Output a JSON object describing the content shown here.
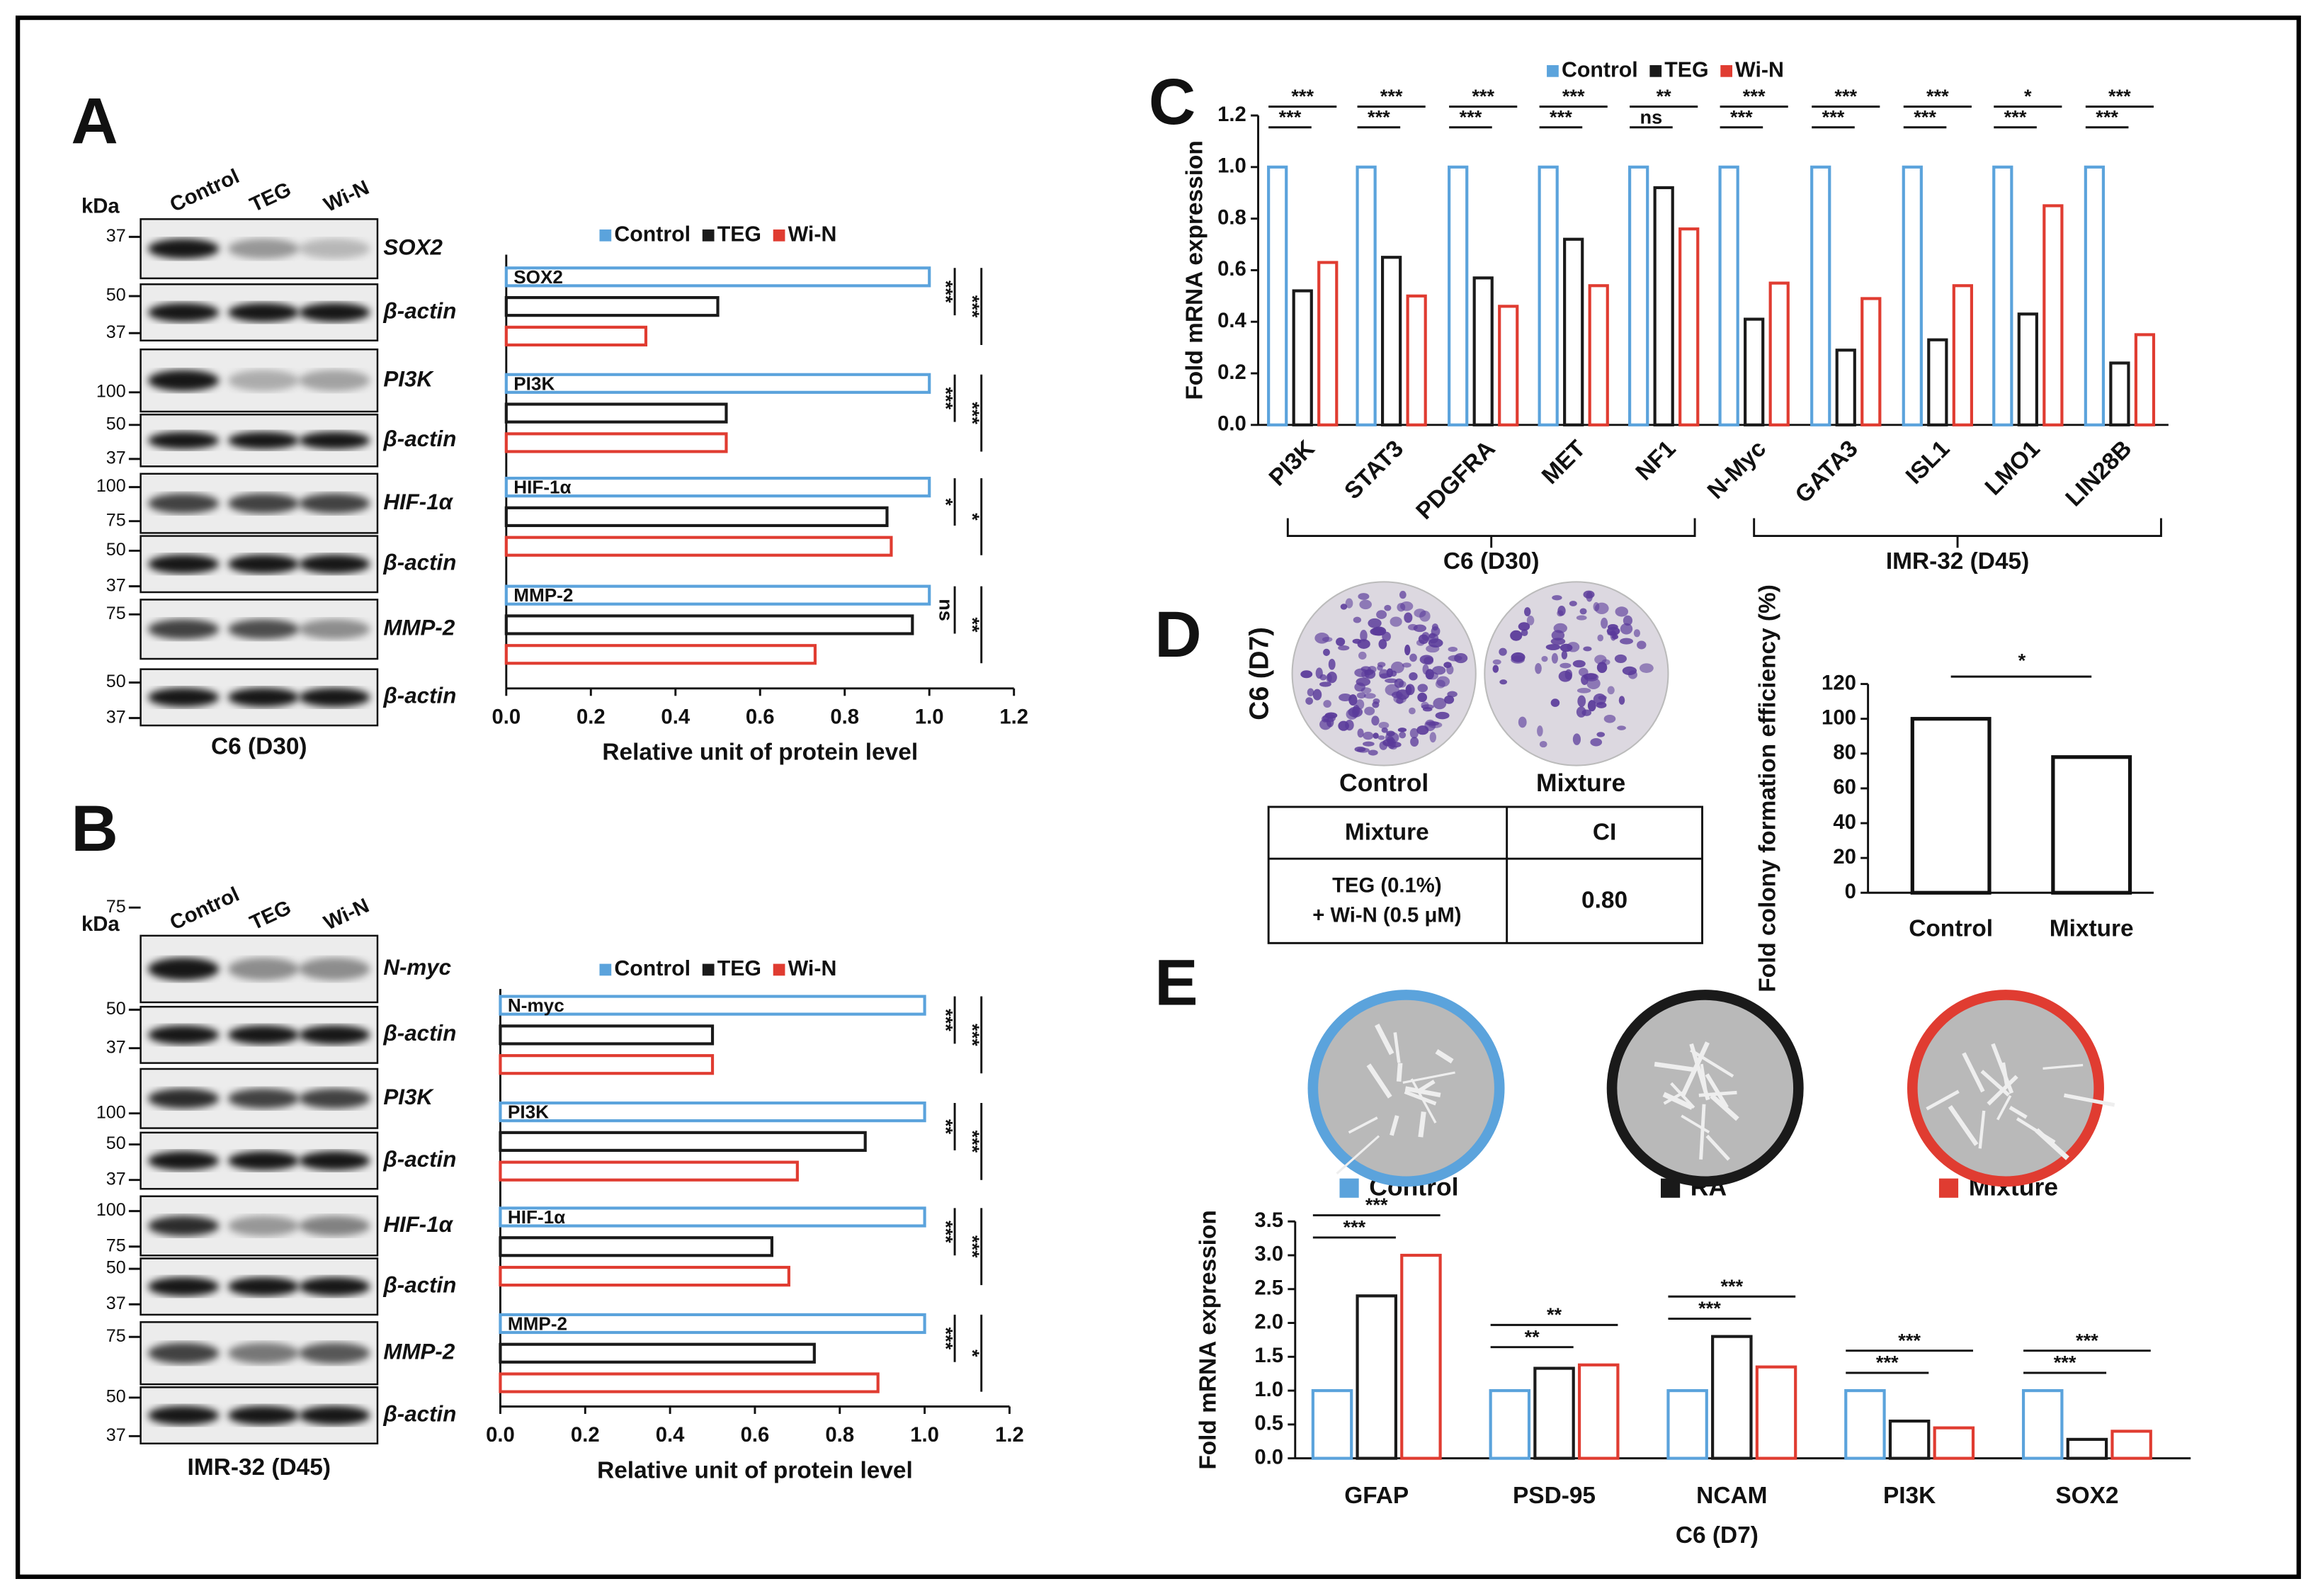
{
  "panel_letters": [
    "A",
    "B",
    "C",
    "D",
    "E"
  ],
  "blots": [
    {
      "unit": "kDa",
      "lanes": [
        "Control",
        "TEG",
        "Wi-N"
      ],
      "rows": [
        "SOX2",
        "β-actin",
        "PI3K",
        "β-actin",
        "HIF-1α",
        "β-actin",
        "MMP-2",
        "β-actin"
      ],
      "markers": [
        "37",
        "50",
        "37",
        "100",
        "50",
        "37",
        "100",
        "75",
        "50",
        "37",
        "75",
        "50",
        "37"
      ],
      "caption": "C6 (D30)"
    },
    {
      "unit": "kDa",
      "lanes": [
        "Control",
        "TEG",
        "Wi-N"
      ],
      "rows": [
        "N-myc",
        "β-actin",
        "PI3K",
        "β-actin",
        "HIF-1α",
        "β-actin",
        "MMP-2",
        "β-actin"
      ],
      "markers": [
        "75",
        "50",
        "37",
        "100",
        "50",
        "37",
        "100",
        "75",
        "50",
        "37",
        "75",
        "50",
        "37"
      ],
      "caption": "IMR-32 (D45)"
    }
  ],
  "colony_images": {
    "title": "C6 (D7)",
    "labels": [
      "Control",
      "Mixture"
    ]
  },
  "table": {
    "header": [
      "Mixture",
      "CI"
    ],
    "rows": [
      [
        [
          "TEG (0.1%)",
          "+ Wi-N (0.5 μM)"
        ],
        "0.80"
      ]
    ]
  },
  "chart_data": [
    {
      "type": "bar",
      "orientation": "horizontal",
      "categories": [
        "SOX2",
        "PI3K",
        "HIF-1α",
        "MMP-2"
      ],
      "series": [
        {
          "name": "Control",
          "color": "#5ba3dc",
          "values": [
            1.0,
            1.0,
            1.0,
            1.0
          ]
        },
        {
          "name": "TEG",
          "color": "#1a1a1a",
          "values": [
            0.5,
            0.52,
            0.9,
            0.96
          ]
        },
        {
          "name": "Wi-N",
          "color": "#e03c31",
          "values": [
            0.33,
            0.52,
            0.91,
            0.73
          ]
        }
      ],
      "xlim": [
        0,
        1.2
      ],
      "xticks": [
        {
          "value": 0,
          "label": "0.0"
        },
        0.2,
        0.4,
        0.6,
        0.8,
        {
          "value": 1,
          "label": "1.0"
        },
        1.2
      ],
      "xlabel": "Relative unit of protein level",
      "significance": [
        [
          "***",
          "***"
        ],
        [
          "***",
          "***"
        ],
        [
          "*",
          "*"
        ],
        [
          "ns",
          "**"
        ]
      ]
    },
    {
      "type": "bar",
      "orientation": "horizontal",
      "categories": [
        "N-myc",
        "PI3K",
        "HIF-1α",
        "MMP-2"
      ],
      "series": [
        {
          "name": "Control",
          "color": "#5ba3dc",
          "values": [
            1.0,
            1.0,
            1.0,
            1.0
          ]
        },
        {
          "name": "TEG",
          "color": "#1a1a1a",
          "values": [
            0.5,
            0.86,
            0.64,
            0.74
          ]
        },
        {
          "name": "Wi-N",
          "color": "#e03c31",
          "values": [
            0.5,
            0.7,
            0.68,
            0.89
          ]
        }
      ],
      "xlim": [
        0,
        1.2
      ],
      "xticks": [
        {
          "value": 0,
          "label": "0.0"
        },
        0.2,
        0.4,
        0.6,
        0.8,
        {
          "value": 1,
          "label": "1.0"
        },
        1.2
      ],
      "xlabel": "Relative unit of protein level",
      "significance": [
        [
          "***",
          "***"
        ],
        [
          "**",
          "***"
        ],
        [
          "***",
          "***"
        ],
        [
          "***",
          "*"
        ]
      ]
    },
    {
      "type": "bar",
      "categories": [
        "PI3K",
        "STAT3",
        "PDGFRA",
        "MET",
        "NF1",
        "N-Myc",
        "GATA3",
        "ISL1",
        "LMO1",
        "LIN28B"
      ],
      "series": [
        {
          "name": "Control",
          "color": "#5ba3dc",
          "values": [
            1,
            1,
            1,
            1,
            1,
            1,
            1,
            1,
            1,
            1
          ]
        },
        {
          "name": "TEG",
          "color": "#1a1a1a",
          "values": [
            0.52,
            0.65,
            0.57,
            0.72,
            0.92,
            0.41,
            0.29,
            0.33,
            0.43,
            0.24
          ]
        },
        {
          "name": "Wi-N",
          "color": "#e03c31",
          "values": [
            0.63,
            0.5,
            0.46,
            0.54,
            0.76,
            0.55,
            0.49,
            0.54,
            0.85,
            0.35
          ]
        }
      ],
      "ylim": [
        0,
        1.2
      ],
      "yticks": [
        {
          "value": 0,
          "label": "0.0"
        },
        0.2,
        0.4,
        0.6,
        0.8,
        {
          "value": 1,
          "label": "1.0"
        },
        1.2
      ],
      "ylabel": "Fold mRNA expression",
      "group_labels": [
        "C6 (D30)",
        "IMR-32 (D45)"
      ],
      "significance": [
        [
          "***",
          "***"
        ],
        [
          "***",
          "***"
        ],
        [
          "***",
          "***"
        ],
        [
          "***",
          "***"
        ],
        [
          "ns",
          "**"
        ],
        [
          "***",
          "***"
        ],
        [
          "***",
          "***"
        ],
        [
          "***",
          "***"
        ],
        [
          "***",
          "*"
        ],
        [
          "***",
          "***"
        ]
      ]
    },
    {
      "type": "bar",
      "categories": [
        "Control",
        "Mixture"
      ],
      "values": [
        100,
        78
      ],
      "color": "#111111",
      "ylim": [
        0,
        120
      ],
      "yticks": [
        0,
        20,
        40,
        60,
        80,
        100,
        120
      ],
      "ylabel": "Fold colony formation efficiency (%)",
      "significance": "*"
    },
    {
      "type": "bar",
      "categories": [
        "GFAP",
        "PSD-95",
        "NCAM",
        "PI3K",
        "SOX2"
      ],
      "series": [
        {
          "name": "Control",
          "color": "#5ba3dc",
          "values": [
            1,
            1,
            1,
            1,
            1
          ]
        },
        {
          "name": "RA",
          "color": "#1a1a1a",
          "values": [
            2.4,
            1.33,
            1.8,
            0.55,
            0.28
          ]
        },
        {
          "name": "Mixture",
          "color": "#e03c31",
          "values": [
            3.0,
            1.38,
            1.35,
            0.45,
            0.4
          ]
        }
      ],
      "ylim": [
        0,
        3.5
      ],
      "yticks": [
        {
          "value": 0,
          "label": "0.0"
        },
        0.5,
        {
          "value": 1,
          "label": "1.0"
        },
        1.5,
        {
          "value": 2,
          "label": "2.0"
        },
        2.5,
        {
          "value": 3,
          "label": "3.0"
        },
        3.5
      ],
      "ylabel": "Fold mRNA expression",
      "xlabel": "C6 (D7)",
      "significance": [
        [
          "***",
          "***"
        ],
        [
          "**",
          "**"
        ],
        [
          "***",
          "***"
        ],
        [
          "***",
          "***"
        ],
        [
          "***",
          "***"
        ]
      ]
    }
  ]
}
